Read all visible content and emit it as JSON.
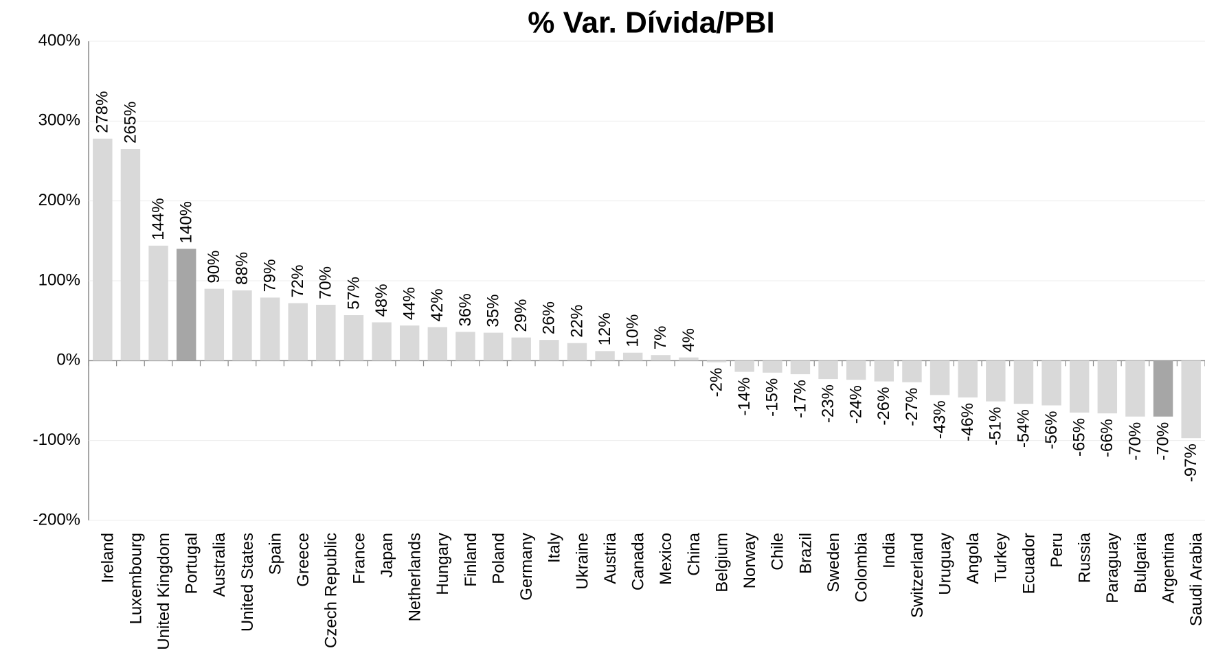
{
  "chart_data": {
    "type": "bar",
    "title": "% Var. Dívida/PBI",
    "categories": [
      "Ireland",
      "Luxembourg",
      "United Kingdom",
      "Portugal",
      "Australia",
      "United States",
      "Spain",
      "Greece",
      "Czech Republic",
      "France",
      "Japan",
      "Netherlands",
      "Hungary",
      "Finland",
      "Poland",
      "Germany",
      "Italy",
      "Ukraine",
      "Austria",
      "Canada",
      "Mexico",
      "China",
      "Belgium",
      "Norway",
      "Chile",
      "Brazil",
      "Sweden",
      "Colombia",
      "India",
      "Switzerland",
      "Uruguay",
      "Angola",
      "Turkey",
      "Ecuador",
      "Peru",
      "Russia",
      "Paraguay",
      "Bulgaria",
      "Argentina",
      "Saudi Arabia"
    ],
    "values": [
      278,
      265,
      144,
      140,
      90,
      88,
      79,
      72,
      70,
      57,
      48,
      44,
      42,
      36,
      35,
      29,
      26,
      22,
      12,
      10,
      7,
      4,
      -2,
      -14,
      -15,
      -17,
      -23,
      -24,
      -26,
      -27,
      -43,
      -46,
      -51,
      -54,
      -56,
      -65,
      -66,
      -70,
      -70,
      -97
    ],
    "value_labels": [
      "278%",
      "265%",
      "144%",
      "140%",
      "90%",
      "88%",
      "79%",
      "72%",
      "70%",
      "57%",
      "48%",
      "44%",
      "42%",
      "36%",
      "35%",
      "29%",
      "26%",
      "22%",
      "12%",
      "10%",
      "7%",
      "4%",
      "-2%",
      "-14%",
      "-15%",
      "-17%",
      "-23%",
      "-24%",
      "-26%",
      "-27%",
      "-43%",
      "-46%",
      "-51%",
      "-54%",
      "-56%",
      "-65%",
      "-66%",
      "-70%",
      "-70%",
      "-97%"
    ],
    "colors": [
      "#d9d9d9",
      "#d9d9d9",
      "#d9d9d9",
      "#a6a6a6",
      "#d9d9d9",
      "#d9d9d9",
      "#d9d9d9",
      "#d9d9d9",
      "#d9d9d9",
      "#d9d9d9",
      "#d9d9d9",
      "#d9d9d9",
      "#d9d9d9",
      "#d9d9d9",
      "#d9d9d9",
      "#d9d9d9",
      "#d9d9d9",
      "#d9d9d9",
      "#d9d9d9",
      "#d9d9d9",
      "#d9d9d9",
      "#d9d9d9",
      "#d9d9d9",
      "#d9d9d9",
      "#d9d9d9",
      "#d9d9d9",
      "#d9d9d9",
      "#d9d9d9",
      "#d9d9d9",
      "#d9d9d9",
      "#d9d9d9",
      "#d9d9d9",
      "#d9d9d9",
      "#d9d9d9",
      "#d9d9d9",
      "#d9d9d9",
      "#d9d9d9",
      "#d9d9d9",
      "#a6a6a6",
      "#d9d9d9"
    ],
    "ylim": [
      -200,
      400
    ],
    "yticks": [
      {
        "value": -200,
        "label": "-200%"
      },
      {
        "value": -100,
        "label": "-100%"
      },
      {
        "value": 0,
        "label": "0%"
      },
      {
        "value": 100,
        "label": "100%"
      },
      {
        "value": 200,
        "label": "200%"
      },
      {
        "value": 300,
        "label": "300%"
      },
      {
        "value": 400,
        "label": "400%"
      }
    ],
    "grid": true
  }
}
